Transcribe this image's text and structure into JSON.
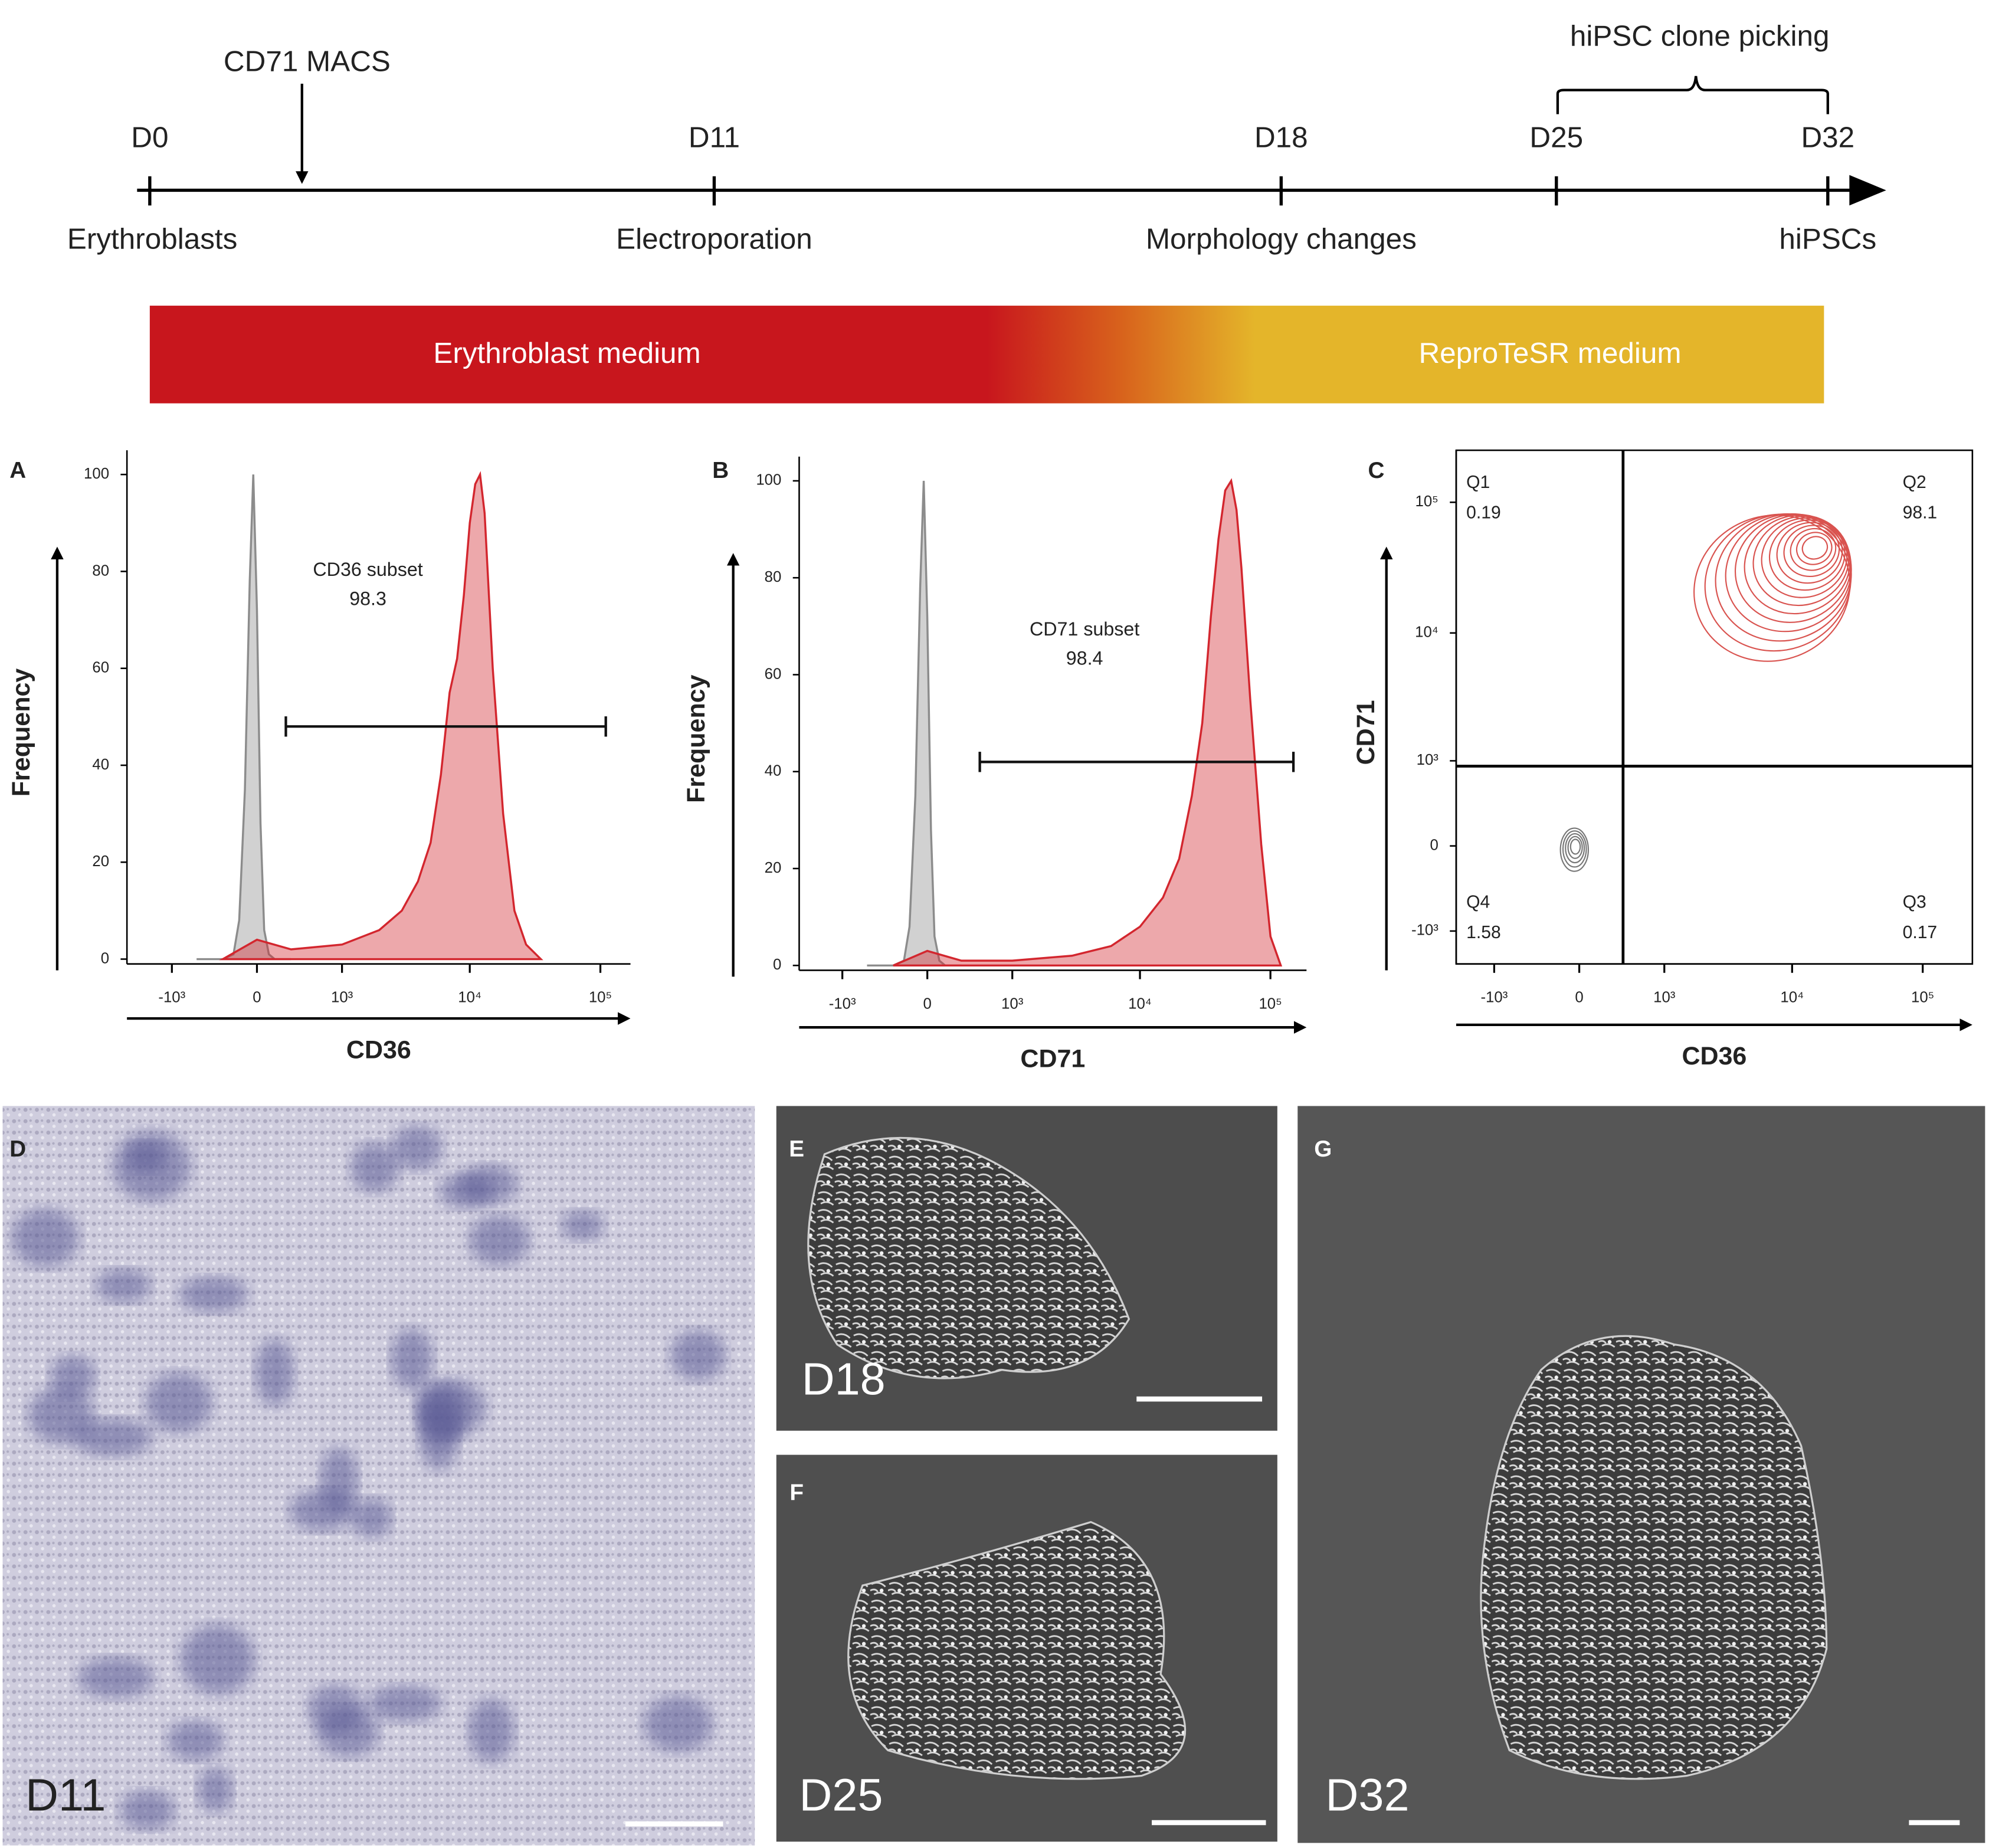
{
  "timeline": {
    "events": [
      {
        "day": "D0",
        "label": "Erythroblasts"
      },
      {
        "day": "D11",
        "label": "Electroporation"
      },
      {
        "day": "D18",
        "label": "Morphology changes"
      },
      {
        "day": "D25"
      },
      {
        "day": "D32",
        "label": "hiPSCs"
      }
    ],
    "annotations": {
      "arrow": "CD71 MACS",
      "brace": "hiPSC clone picking"
    }
  },
  "media": [
    "Erythroblast medium",
    "ReproTeSR medium"
  ],
  "chart_data": [
    {
      "type": "histogram",
      "panel": "A",
      "xlabel": "CD36",
      "ylabel": "Frequency",
      "xscale": "biexponential",
      "xlim": [
        -2300,
        170000
      ],
      "xticks": [
        {
          "value": -1000,
          "label": "-10³"
        },
        0,
        {
          "value": 1000,
          "label": "10³"
        },
        {
          "value": 10000,
          "label": "10⁴"
        },
        {
          "value": 100000,
          "label": "10⁵"
        }
      ],
      "ylim": [
        -1,
        105
      ],
      "yticks": [
        0,
        20,
        40,
        60,
        80,
        100
      ],
      "series": [
        {
          "color": "#8c8c8c",
          "x": [
            -600,
            -300,
            -200,
            -150,
            -100,
            -60,
            -30,
            0,
            30,
            60,
            100,
            150,
            300
          ],
          "values": [
            0,
            0,
            1,
            8,
            35,
            78,
            100,
            72,
            28,
            6,
            1,
            0,
            0
          ]
        },
        {
          "color": "#d3262e",
          "x": [
            -300,
            0,
            300,
            1000,
            2000,
            3000,
            4000,
            5000,
            6000,
            7000,
            8000,
            9000,
            10000,
            11000,
            12000,
            13000,
            15000,
            18000,
            22000,
            27000,
            35000
          ],
          "values": [
            0,
            4,
            2,
            3,
            6,
            10,
            16,
            24,
            38,
            55,
            62,
            75,
            90,
            98,
            100,
            92,
            60,
            30,
            10,
            3,
            0
          ]
        }
      ],
      "gate": {
        "name": "CD36 subset",
        "x": [
          250,
          110000
        ],
        "y": 48,
        "value": 98.3
      }
    },
    {
      "type": "histogram",
      "panel": "B",
      "xlabel": "CD71",
      "ylabel": "Frequency",
      "xscale": "biexponential",
      "xlim": [
        -2230,
        189000
      ],
      "xticks": [
        {
          "value": -1000,
          "label": "-10³"
        },
        0,
        {
          "value": 1000,
          "label": "10³"
        },
        {
          "value": 10000,
          "label": "10⁴"
        },
        {
          "value": 100000,
          "label": "10⁵"
        }
      ],
      "ylim": [
        -1,
        105
      ],
      "yticks": [
        0,
        20,
        40,
        60,
        80,
        100
      ],
      "series": [
        {
          "color": "#8c8c8c",
          "x": [
            -600,
            -300,
            -200,
            -150,
            -100,
            -60,
            -30,
            0,
            30,
            60,
            100,
            150,
            300
          ],
          "values": [
            0,
            0,
            1,
            8,
            35,
            78,
            100,
            72,
            28,
            6,
            1,
            0,
            0
          ]
        },
        {
          "color": "#d3262e",
          "x": [
            -300,
            0,
            300,
            1000,
            3000,
            6000,
            10000,
            15000,
            20000,
            25000,
            30000,
            35000,
            40000,
            45000,
            50000,
            55000,
            60000,
            70000,
            85000,
            100000,
            120000
          ],
          "values": [
            0,
            3,
            1,
            1,
            2,
            4,
            8,
            14,
            22,
            35,
            50,
            72,
            88,
            98,
            100,
            94,
            82,
            55,
            25,
            6,
            0
          ]
        }
      ],
      "gate": {
        "name": "CD71 subset",
        "x": [
          500,
          150000
        ],
        "y": 42,
        "value": 98.4
      }
    },
    {
      "type": "contour",
      "panel": "C",
      "xlabel": "CD36",
      "ylabel": "CD71",
      "xscale": "biexponential",
      "yscale": "biexponential",
      "xlim": [
        -2030,
        240000
      ],
      "xticks": [
        {
          "value": -1000,
          "label": "-10³"
        },
        0,
        {
          "value": 1000,
          "label": "10³"
        },
        {
          "value": 10000,
          "label": "10⁴"
        },
        {
          "value": 100000,
          "label": "10⁵"
        }
      ],
      "ylim": [
        -1850,
        250000
      ],
      "yticks": [
        {
          "value": -1000,
          "label": "-10³"
        },
        0,
        {
          "value": 1000,
          "label": "10³"
        },
        {
          "value": 10000,
          "label": "10⁴"
        },
        {
          "value": 100000,
          "label": "10⁵"
        }
      ],
      "quadrant_gate": {
        "x": 400,
        "y": 900
      },
      "quadrants": [
        {
          "name": "Q1",
          "value": 0.19
        },
        {
          "name": "Q2",
          "value": 98.1
        },
        {
          "name": "Q3",
          "value": 0.17
        },
        {
          "name": "Q4",
          "value": 1.58
        }
      ],
      "populations": [
        {
          "color": "#d9534f",
          "x": 15000,
          "y": 45000
        },
        {
          "color": "#777777",
          "x": -30,
          "y": 0
        }
      ]
    }
  ],
  "micrographs": [
    {
      "panel": "D",
      "day": "D11"
    },
    {
      "panel": "E",
      "day": "D18"
    },
    {
      "panel": "F",
      "day": "D25"
    },
    {
      "panel": "G",
      "day": "D32"
    }
  ]
}
